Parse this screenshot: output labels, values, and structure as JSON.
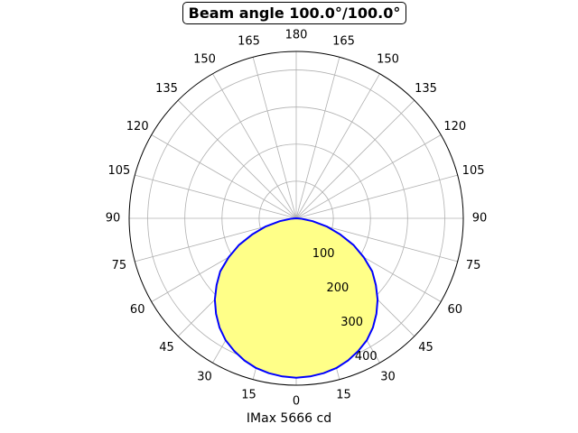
{
  "chart_data": {
    "type": "polar",
    "title": "Beam angle 100.0°/100.0°",
    "xlabel": "IMax 5666 cd",
    "angle_tick_labels": [
      "0",
      "15",
      "30",
      "45",
      "60",
      "75",
      "90",
      "105",
      "120",
      "135",
      "150",
      "165",
      "180",
      "165",
      "150",
      "135",
      "120",
      "105",
      "90",
      "75",
      "60",
      "45",
      "30",
      "15"
    ],
    "radial_ticks": [
      100,
      200,
      300,
      400
    ],
    "radial_tick_labels": [
      "100",
      "200",
      "300",
      "400"
    ],
    "rlim": [
      0,
      450
    ],
    "grid": true,
    "series": [
      {
        "fill_color": "#ffff88",
        "line_color": "#0000ff",
        "angles_deg": [
          0,
          5,
          10,
          15,
          20,
          25,
          30,
          35,
          40,
          45,
          50,
          55,
          60,
          65,
          70,
          75,
          80,
          85,
          90
        ],
        "values": [
          430,
          428,
          424,
          418,
          408,
          395,
          380,
          360,
          336,
          310,
          280,
          250,
          210,
          170,
          125,
          85,
          45,
          15,
          0
        ],
        "symmetric": true
      }
    ]
  }
}
